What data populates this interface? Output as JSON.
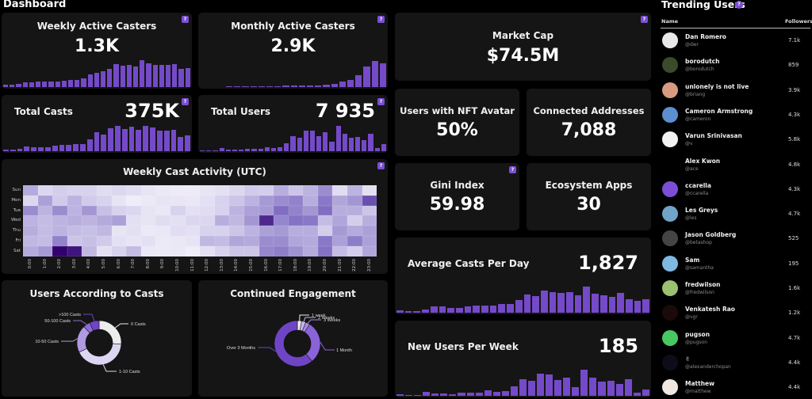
{
  "page": {
    "title": "Dashboard"
  },
  "colors": {
    "accent": "#744ac8",
    "card_bg": "#151515",
    "page_bg": "#000000"
  },
  "help_label": "?",
  "cards": {
    "weekly_active_casters": {
      "title": "Weekly Active Casters",
      "value": "1.3K",
      "bars": [
        5,
        5,
        6,
        10,
        10,
        11,
        11,
        12,
        12,
        13,
        15,
        15,
        18,
        26,
        30,
        33,
        38,
        48,
        45,
        46,
        44,
        56,
        50,
        47,
        47,
        47,
        49,
        39,
        40
      ]
    },
    "monthly_active_casters": {
      "title": "Monthly Active Casters",
      "value": "2.9K",
      "bars": [
        0,
        0,
        0,
        2,
        2,
        2,
        2,
        3,
        3,
        3,
        3,
        3,
        4,
        6,
        10,
        14,
        23,
        40,
        50,
        46
      ]
    },
    "total_casts": {
      "title": "Total Casts",
      "value": "375K",
      "bars": [
        5,
        5,
        6,
        12,
        11,
        11,
        10,
        14,
        16,
        16,
        18,
        19,
        30,
        50,
        44,
        59,
        65,
        57,
        63,
        56,
        66,
        62,
        54,
        54,
        55,
        37,
        42
      ]
    },
    "total_users": {
      "title": "Total Users",
      "value": "7 935",
      "bars": [
        2,
        2,
        2,
        8,
        5,
        5,
        4,
        6,
        6,
        6,
        12,
        9,
        11,
        22,
        42,
        37,
        57,
        56,
        41,
        52,
        27,
        70,
        48,
        36,
        40,
        31,
        47,
        8,
        20
      ]
    },
    "market_cap": {
      "title": "Market Cap",
      "value": "$74.5M"
    },
    "nft_avatar": {
      "title": "Users with NFT Avatar",
      "value": "50%"
    },
    "connected_addresses": {
      "title": "Connected Addresses",
      "value": "7,088"
    },
    "gini_index": {
      "title": "Gini Index",
      "value": "59.98"
    },
    "ecosystem_apps": {
      "title": "Ecosystem Apps",
      "value": "30"
    },
    "avg_casts_per_day": {
      "title": "Average Casts Per Day",
      "value": "1,827",
      "bars": [
        3,
        2,
        2,
        4,
        8,
        8,
        6,
        6,
        9,
        10,
        10,
        10,
        12,
        12,
        17,
        24,
        22,
        30,
        28,
        26,
        28,
        23,
        35,
        25,
        23,
        21,
        26,
        18,
        16,
        18
      ]
    },
    "new_users_per_week": {
      "title": "New Users Per Week",
      "value": "185",
      "bars": [
        3,
        2,
        2,
        8,
        5,
        5,
        4,
        6,
        6,
        7,
        12,
        8,
        11,
        20,
        35,
        32,
        48,
        46,
        34,
        40,
        19,
        56,
        39,
        31,
        32,
        25,
        36,
        7,
        14
      ]
    }
  },
  "heatmap": {
    "title": "Weekly Cast Activity (UTC)",
    "days": [
      "Sun",
      "Mon",
      "Tue",
      "Wed",
      "Thu",
      "Fri",
      "Sat"
    ],
    "hours": [
      "0:00",
      "1:00",
      "2:00",
      "3:00",
      "4:00",
      "5:00",
      "6:00",
      "7:00",
      "8:00",
      "9:00",
      "10:00",
      "11:00",
      "12:00",
      "13:00",
      "14:00",
      "15:00",
      "16:00",
      "17:00",
      "18:00",
      "19:00",
      "20:00",
      "21:00",
      "22:00",
      "23:00"
    ],
    "values": [
      [
        0.4,
        0.15,
        0.2,
        0.18,
        0.18,
        0.12,
        0.15,
        0.12,
        0.08,
        0.05,
        0.04,
        0.04,
        0.08,
        0.1,
        0.15,
        0.22,
        0.2,
        0.38,
        0.25,
        0.35,
        0.55,
        0.12,
        0.35,
        0.1
      ],
      [
        0.15,
        0.45,
        0.22,
        0.35,
        0.22,
        0.18,
        0.08,
        0.03,
        0.05,
        0.08,
        0.07,
        0.06,
        0.1,
        0.18,
        0.25,
        0.35,
        0.48,
        0.55,
        0.6,
        0.38,
        0.65,
        0.42,
        0.5,
        0.8
      ],
      [
        0.55,
        0.35,
        0.55,
        0.35,
        0.5,
        0.28,
        0.18,
        0.15,
        0.08,
        0.06,
        0.18,
        0.1,
        0.12,
        0.18,
        0.35,
        0.45,
        0.48,
        0.7,
        0.6,
        0.5,
        0.7,
        0.38,
        0.38,
        0.25
      ],
      [
        0.35,
        0.3,
        0.35,
        0.38,
        0.35,
        0.4,
        0.45,
        0.1,
        0.08,
        0.12,
        0.1,
        0.15,
        0.15,
        0.38,
        0.32,
        0.5,
        0.9,
        0.58,
        0.68,
        0.65,
        0.3,
        0.42,
        0.2,
        0.38
      ],
      [
        0.38,
        0.3,
        0.35,
        0.3,
        0.28,
        0.32,
        0.08,
        0.1,
        0.05,
        0.06,
        0.12,
        0.1,
        0.18,
        0.18,
        0.25,
        0.35,
        0.45,
        0.48,
        0.38,
        0.38,
        0.2,
        0.48,
        0.4,
        0.45
      ],
      [
        0.32,
        0.3,
        0.6,
        0.25,
        0.28,
        0.22,
        0.1,
        0.08,
        0.1,
        0.05,
        0.06,
        0.08,
        0.32,
        0.3,
        0.42,
        0.4,
        0.55,
        0.55,
        0.42,
        0.4,
        0.65,
        0.45,
        0.62,
        0.45
      ],
      [
        0.4,
        0.48,
        1.0,
        0.95,
        0.32,
        0.1,
        0.18,
        0.3,
        0.06,
        0.05,
        0.06,
        0.03,
        0.1,
        0.18,
        0.25,
        0.25,
        0.58,
        0.62,
        0.52,
        0.4,
        0.68,
        0.3,
        0.2,
        0.42
      ]
    ]
  },
  "pies": {
    "users_by_casts": {
      "title": "Users According to Casts",
      "slices": [
        {
          "label": "0 Casts",
          "value": 26,
          "color": "#ececec"
        },
        {
          "label": "1-10 Casts",
          "value": 42,
          "color": "#ddd6f3"
        },
        {
          "label": "10-50 Casts",
          "value": 20,
          "color": "#b09ae0"
        },
        {
          "label": "50-100 Casts",
          "value": 5,
          "color": "#8c6bd6"
        },
        {
          "label": ">100 Casts",
          "value": 7,
          "color": "#6f45c6"
        }
      ]
    },
    "continued_engagement": {
      "title": "Continued Engagement",
      "slices": [
        {
          "label": "1 week",
          "value": 3,
          "color": "#eeeeee"
        },
        {
          "label": "2 Weeks",
          "value": 3,
          "color": "#c7b6ee"
        },
        {
          "label": "3 Weeks",
          "value": 3,
          "color": "#a88be2"
        },
        {
          "label": "1 Month",
          "value": 30,
          "color": "#8b63d8"
        },
        {
          "label": "Over 3 Months",
          "value": 61,
          "color": "#6f45c6"
        }
      ]
    }
  },
  "trending": {
    "title": "Trending Users",
    "col_name": "Name",
    "col_followers": "Followers",
    "users": [
      {
        "name": "Dan Romero",
        "handle": "@dwr",
        "followers": "7.1k",
        "avatar": "#e8e8e8"
      },
      {
        "name": "borodutch",
        "handle": "@borodutch",
        "followers": "859",
        "avatar": "#3a4a2a"
      },
      {
        "name": "unlonely is not live",
        "handle": "@briang",
        "followers": "3.9k",
        "avatar": "#d89a80"
      },
      {
        "name": "Cameron Armstrong",
        "handle": "@cameron",
        "followers": "4.3k",
        "avatar": "#5b8fd0"
      },
      {
        "name": "Varun Srinivasan",
        "handle": "@v",
        "followers": "5.8k",
        "avatar": "#f2f2f2"
      },
      {
        "name": "Alex Kwon",
        "handle": "@ace",
        "followers": "4.8k",
        "avatar": "#000000"
      },
      {
        "name": "ccarella",
        "handle": "@ccarella",
        "followers": "4.3k",
        "avatar": "#7b4fd4"
      },
      {
        "name": "Les Greys",
        "handle": "@les",
        "followers": "4.7k",
        "avatar": "#6fa4c8"
      },
      {
        "name": "Jason Goldberg",
        "handle": "@betashop",
        "followers": "525",
        "avatar": "#444444"
      },
      {
        "name": "Sam",
        "handle": "@samantha",
        "followers": "195",
        "avatar": "#7fb8e0"
      },
      {
        "name": "fredwilson",
        "handle": "@fredwilson",
        "followers": "1.6k",
        "avatar": "#9ac070"
      },
      {
        "name": "Venkatesh Rao",
        "handle": "@vgr",
        "followers": "1.2k",
        "avatar": "#1a0a0a"
      },
      {
        "name": "pugson",
        "handle": "@pugson",
        "followers": "4.7k",
        "avatar": "#48c860"
      },
      {
        "name": "✌",
        "handle": "@alexanderchopan",
        "followers": "4.4k",
        "avatar": "#0d0d1a"
      },
      {
        "name": "Matthew",
        "handle": "@matthew",
        "followers": "4.4k",
        "avatar": "#f0e8e0"
      }
    ]
  }
}
